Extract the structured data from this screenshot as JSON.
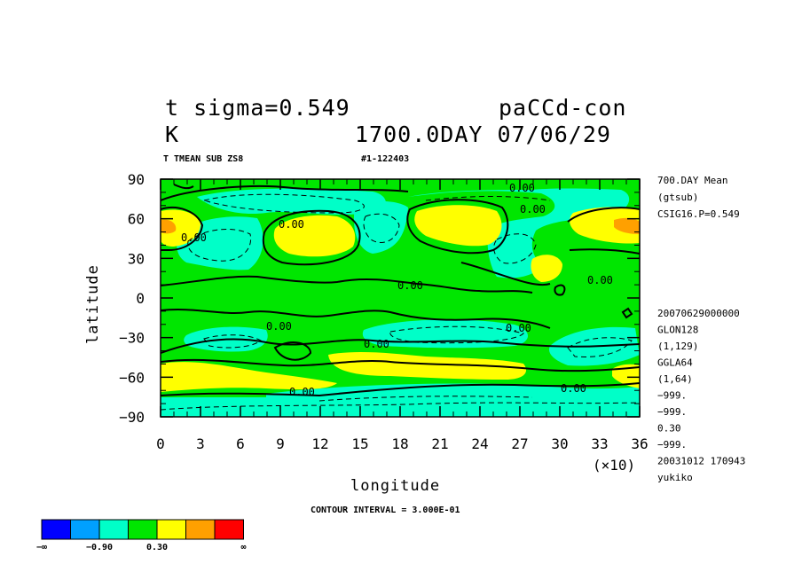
{
  "header": {
    "var_line": "t sigma=0.549",
    "exp_name": "paCCd-con",
    "unit": "K",
    "time_line": "1700.0DAY 07/06/29",
    "subtitle": "T TMEAN SUB ZS8",
    "run_id": "#1-122403"
  },
  "right_info": {
    "top": [
      "700.DAY Mean",
      "(gtsub)",
      "CSIG16.P=0.549"
    ],
    "bottom": [
      "20070629000000",
      "GLON128",
      "(1,129)",
      "GGLA64",
      "(1,64)",
      "-999.",
      "-999.",
      "0.30",
      "-999.",
      "20031012 170943",
      "yukiko"
    ]
  },
  "contour_interval": "CONTOUR INTERVAL = 3.000E-01",
  "chart_data": {
    "type": "heatmap",
    "title": "t sigma=0.549",
    "xlabel": "longitude",
    "ylabel": "latitude",
    "x_multiplier": "(×10)",
    "xlim": [
      0,
      36
    ],
    "ylim": [
      -90,
      90
    ],
    "xticks": [
      "0",
      "3",
      "6",
      "9",
      "12",
      "15",
      "18",
      "21",
      "24",
      "27",
      "30",
      "33",
      "36"
    ],
    "yticks": [
      "90",
      "60",
      "30",
      "0",
      "-30",
      "-60",
      "-90"
    ],
    "contour_labels": [
      "0.00",
      "0.00",
      "0.00",
      "0.00",
      "0.00",
      "0.00",
      "0.00",
      "0.00",
      "0.00",
      "0.00",
      "0.00"
    ],
    "levels": [
      "-∞",
      "-0.90",
      "0.30",
      "∞"
    ],
    "colorbar": [
      "#0000ff",
      "#00a0ff",
      "#00ffc8",
      "#00e600",
      "#ffff00",
      "#ffa000",
      "#ff0000"
    ],
    "fields": [
      {
        "name": "green-band",
        "color": "#00e600"
      },
      {
        "name": "cyan-lobe",
        "color": "#00ffc8"
      },
      {
        "name": "yellow-lobe",
        "color": "#ffff00"
      },
      {
        "name": "orange-lobe",
        "color": "#ffa000"
      }
    ]
  }
}
